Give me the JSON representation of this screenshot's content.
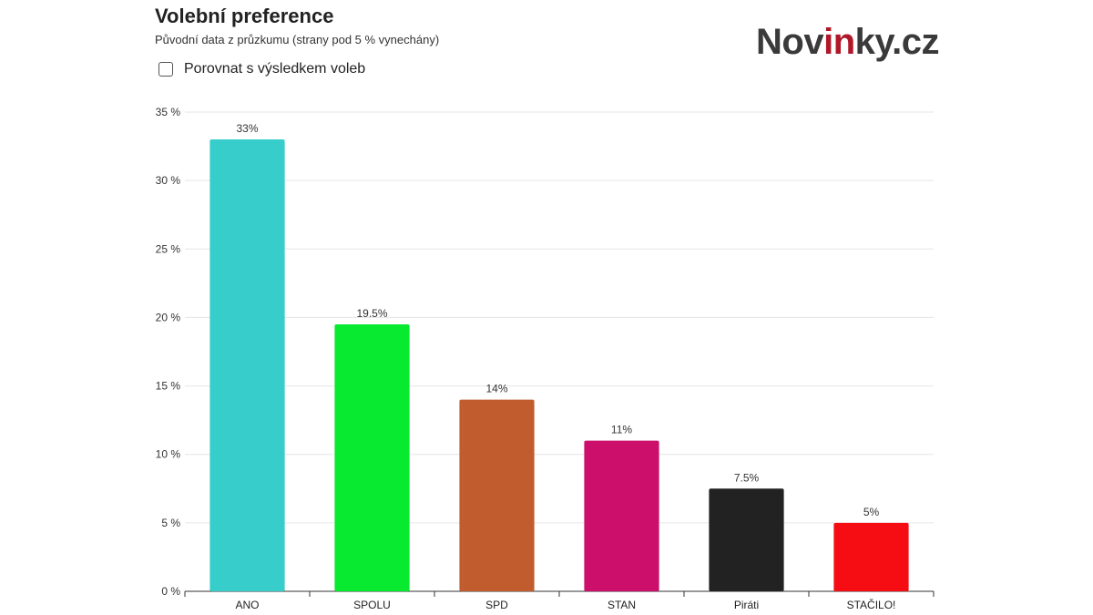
{
  "header": {
    "title": "Volební preference",
    "subtitle": "Původní data z průzkumu (strany pod 5 % vynechány)",
    "compare_label": "Porovnat s výsledkem voleb"
  },
  "logo": {
    "part1": "Nov",
    "part2": "in",
    "part3": "ky.cz"
  },
  "chart_data": {
    "type": "bar",
    "title": "Volební preference",
    "xlabel": "",
    "ylabel": "",
    "ylim": [
      0,
      35
    ],
    "yticks": [
      0,
      5,
      10,
      15,
      20,
      25,
      30,
      35
    ],
    "ytick_suffix": " %",
    "grid": true,
    "categories": [
      "ANO",
      "SPOLU",
      "SPD",
      "STAN",
      "Piráti",
      "STAČILO!"
    ],
    "values": [
      33,
      19.5,
      14,
      11,
      7.5,
      5
    ],
    "data_labels": [
      "33%",
      "19.5%",
      "14%",
      "11%",
      "7.5%",
      "5%"
    ],
    "colors": [
      "#36cdca",
      "#07ea2f",
      "#c05c2e",
      "#cc0f6a",
      "#222222",
      "#f50d13"
    ]
  }
}
